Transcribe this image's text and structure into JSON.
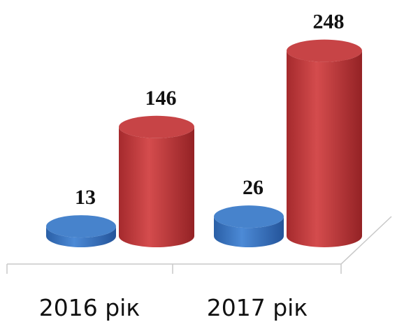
{
  "chart_data": {
    "type": "bar3d",
    "categories": [
      "2016 рік",
      "2017 рік"
    ],
    "series": [
      {
        "color": "#3d7cc9",
        "values": [
          13,
          26
        ]
      },
      {
        "color": "#c43a3c",
        "values": [
          146,
          248
        ]
      }
    ]
  }
}
